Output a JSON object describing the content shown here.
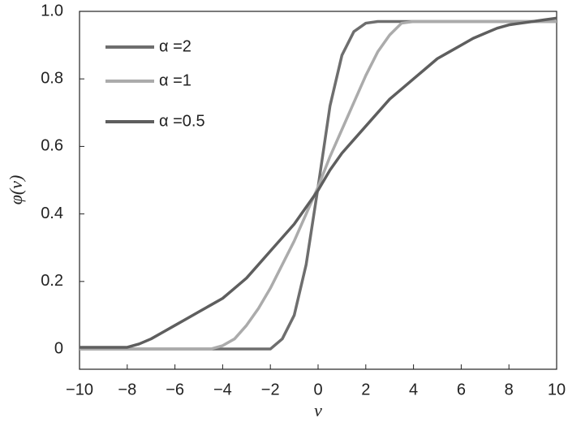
{
  "chart_data": {
    "type": "line",
    "xlabel": "v",
    "ylabel": "φ(v)",
    "x": [
      -10,
      -9.5,
      -9,
      -8.5,
      -8,
      -7.5,
      -7,
      -6.5,
      -6,
      -5.5,
      -5,
      -4.5,
      -4,
      -3.5,
      -3,
      -2.5,
      -2,
      -1.5,
      -1,
      -0.5,
      0,
      0.5,
      1,
      1.5,
      2,
      2.5,
      3,
      3.5,
      4,
      4.5,
      5,
      5.5,
      6,
      6.5,
      7,
      7.5,
      8,
      8.5,
      9,
      9.5,
      10
    ],
    "series": [
      {
        "name": "α =2",
        "color": "#6e6e6e",
        "values": [
          0,
          0,
          0,
          0,
          0,
          0,
          0,
          0,
          0,
          0,
          0,
          0,
          0,
          0,
          0,
          0,
          0,
          0.03,
          0.1,
          0.25,
          0.48,
          0.72,
          0.87,
          0.94,
          0.965,
          0.97,
          0.97,
          0.97,
          0.97,
          0.97,
          0.97,
          0.97,
          0.97,
          0.97,
          0.97,
          0.97,
          0.97,
          0.97,
          0.97,
          0.97,
          0.97
        ]
      },
      {
        "name": "α =1",
        "color": "#ababab",
        "values": [
          0,
          0,
          0,
          0,
          0,
          0,
          0,
          0,
          0,
          0,
          0,
          0,
          0.01,
          0.03,
          0.07,
          0.12,
          0.18,
          0.25,
          0.32,
          0.4,
          0.48,
          0.57,
          0.65,
          0.73,
          0.81,
          0.88,
          0.93,
          0.965,
          0.97,
          0.97,
          0.97,
          0.97,
          0.97,
          0.97,
          0.97,
          0.97,
          0.97,
          0.97,
          0.97,
          0.97,
          0.97
        ]
      },
      {
        "name": "α =0.5",
        "color": "#5e5e5e",
        "values": [
          0.005,
          0.005,
          0.005,
          0.005,
          0.005,
          0.015,
          0.03,
          0.05,
          0.07,
          0.09,
          0.11,
          0.13,
          0.15,
          0.18,
          0.21,
          0.25,
          0.29,
          0.33,
          0.37,
          0.42,
          0.47,
          0.53,
          0.58,
          0.62,
          0.66,
          0.7,
          0.74,
          0.77,
          0.8,
          0.83,
          0.86,
          0.88,
          0.9,
          0.92,
          0.935,
          0.95,
          0.96,
          0.965,
          0.97,
          0.975,
          0.98
        ]
      }
    ],
    "xlim": [
      -10,
      10
    ],
    "xticks": [
      {
        "value": -10,
        "label": "−10"
      },
      {
        "value": -8,
        "label": "−8"
      },
      {
        "value": -6,
        "label": "−6"
      },
      {
        "value": -4,
        "label": "−4"
      },
      {
        "value": -2,
        "label": "−2"
      },
      0,
      2,
      4,
      6,
      8,
      10
    ],
    "ylim": [
      -0.06,
      1
    ],
    "yticks": [
      0,
      0.2,
      0.4,
      0.6,
      0.8,
      {
        "value": 1,
        "label": "1.0"
      }
    ],
    "grid": false,
    "legend": "upper left"
  }
}
